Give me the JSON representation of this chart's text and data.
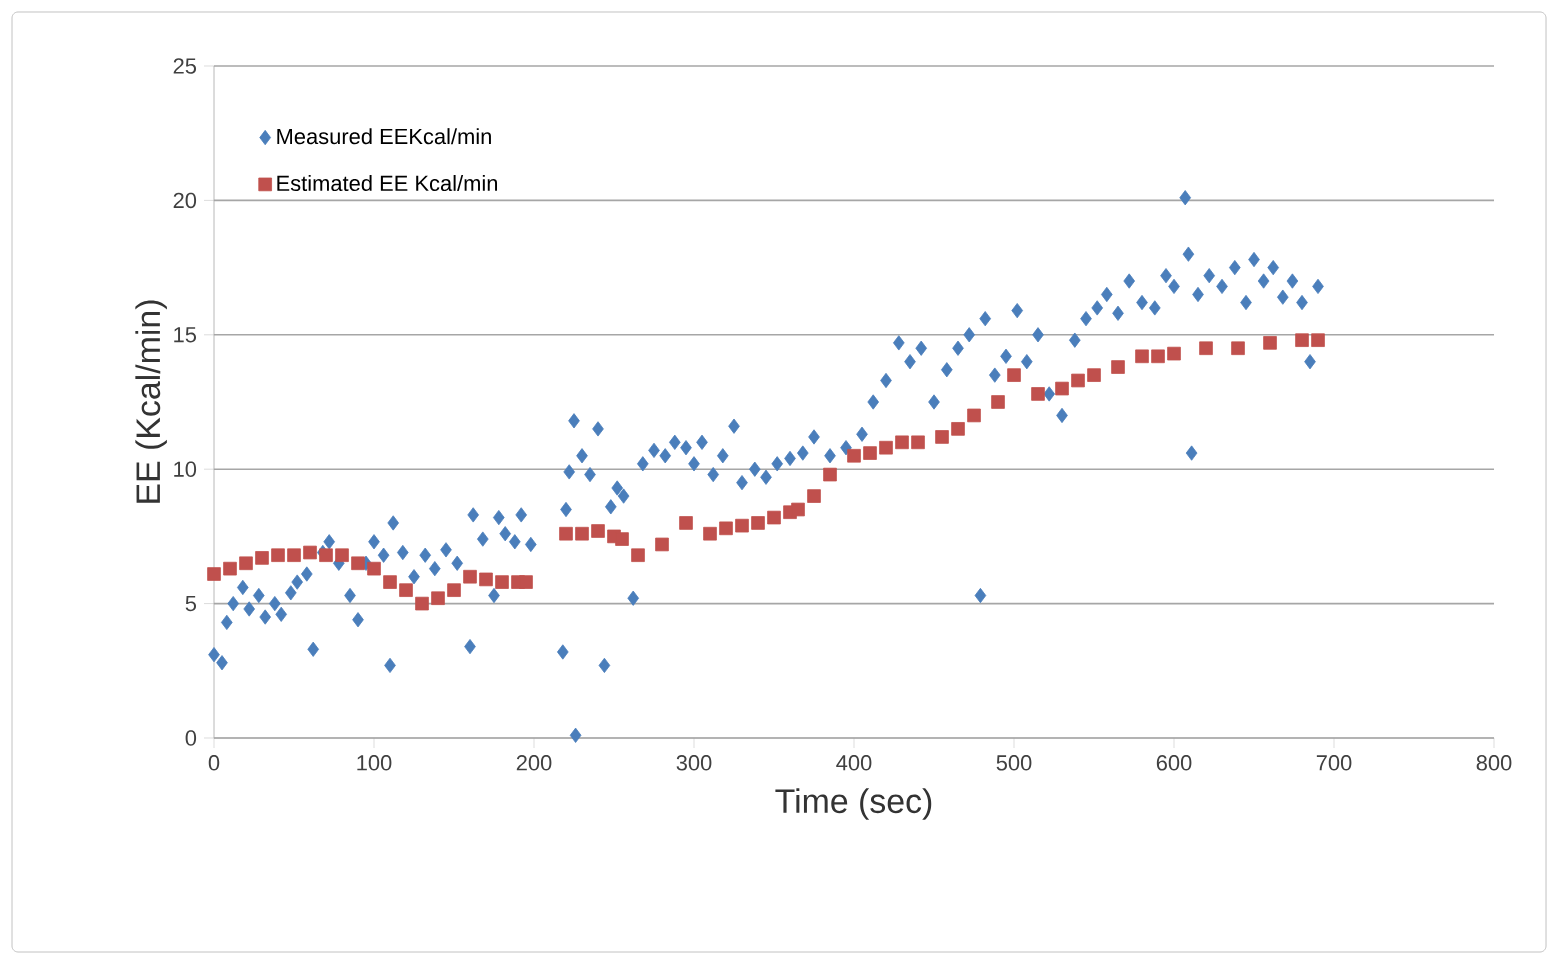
{
  "chart_data": {
    "type": "scatter",
    "xlabel": "Time (sec)",
    "ylabel": "EE (Kcal/min)",
    "xlim": [
      0,
      800
    ],
    "ylim": [
      0,
      25
    ],
    "xticks": [
      0,
      100,
      200,
      300,
      400,
      500,
      600,
      700,
      800
    ],
    "yticks": [
      0,
      5,
      10,
      15,
      20,
      25
    ],
    "grid": "y",
    "legend": "top left",
    "series": [
      {
        "name": "Measured EEKcal/min",
        "color": "#4a7ebb",
        "marker": "diamond",
        "x": [
          0,
          5,
          8,
          12,
          18,
          22,
          28,
          32,
          38,
          42,
          48,
          52,
          58,
          62,
          68,
          72,
          78,
          85,
          90,
          95,
          100,
          106,
          110,
          112,
          118,
          125,
          132,
          138,
          145,
          152,
          160,
          162,
          168,
          175,
          178,
          182,
          188,
          192,
          198,
          218,
          220,
          222,
          225,
          226,
          230,
          235,
          240,
          244,
          248,
          252,
          256,
          262,
          268,
          275,
          282,
          288,
          295,
          300,
          305,
          312,
          318,
          325,
          330,
          338,
          345,
          352,
          360,
          368,
          375,
          385,
          395,
          405,
          412,
          420,
          428,
          435,
          442,
          450,
          458,
          465,
          472,
          479,
          482,
          488,
          495,
          502,
          508,
          515,
          522,
          530,
          538,
          545,
          552,
          558,
          565,
          572,
          580,
          588,
          595,
          600,
          607,
          609,
          611,
          615,
          622,
          630,
          638,
          645,
          650,
          656,
          662,
          668,
          674,
          680,
          685,
          690
        ],
        "values": [
          3.1,
          2.8,
          4.3,
          5.0,
          5.6,
          4.8,
          5.3,
          4.5,
          5.0,
          4.6,
          5.4,
          5.8,
          6.1,
          3.3,
          6.9,
          7.3,
          6.5,
          5.3,
          4.4,
          6.5,
          7.3,
          6.8,
          2.7,
          8.0,
          6.9,
          6.0,
          6.8,
          6.3,
          7.0,
          6.5,
          3.4,
          8.3,
          7.4,
          5.3,
          8.2,
          7.6,
          7.3,
          8.3,
          7.2,
          3.2,
          8.5,
          9.9,
          11.8,
          0.1,
          10.5,
          9.8,
          11.5,
          2.7,
          8.6,
          9.3,
          9.0,
          5.2,
          10.2,
          10.7,
          10.5,
          11.0,
          10.8,
          10.2,
          11.0,
          9.8,
          10.5,
          11.6,
          9.5,
          10.0,
          9.7,
          10.2,
          10.4,
          10.6,
          11.2,
          10.5,
          10.8,
          11.3,
          12.5,
          13.3,
          14.7,
          14.0,
          14.5,
          12.5,
          13.7,
          14.5,
          15.0,
          5.3,
          15.6,
          13.5,
          14.2,
          15.9,
          14.0,
          15.0,
          12.8,
          12.0,
          14.8,
          15.6,
          16.0,
          16.5,
          15.8,
          17.0,
          16.2,
          16.0,
          17.2,
          16.8,
          20.1,
          18.0,
          10.6,
          16.5,
          17.2,
          16.8,
          17.5,
          16.2,
          17.8,
          17.0,
          17.5,
          16.4,
          17.0,
          16.2,
          14.0,
          16.8
        ]
      },
      {
        "name": "Estimated EE Kcal/min",
        "color": "#c0504d",
        "marker": "square",
        "x": [
          0,
          10,
          20,
          30,
          40,
          50,
          60,
          70,
          80,
          90,
          100,
          110,
          120,
          130,
          140,
          150,
          160,
          170,
          180,
          190,
          195,
          220,
          230,
          240,
          250,
          255,
          265,
          280,
          295,
          310,
          320,
          330,
          340,
          350,
          360,
          365,
          375,
          385,
          400,
          410,
          420,
          430,
          440,
          455,
          465,
          475,
          490,
          500,
          515,
          530,
          540,
          550,
          565,
          580,
          590,
          600,
          620,
          640,
          660,
          680,
          690
        ],
        "values": [
          6.1,
          6.3,
          6.5,
          6.7,
          6.8,
          6.8,
          6.9,
          6.8,
          6.8,
          6.5,
          6.3,
          5.8,
          5.5,
          5.0,
          5.2,
          5.5,
          6.0,
          5.9,
          5.8,
          5.8,
          5.8,
          7.6,
          7.6,
          7.7,
          7.5,
          7.4,
          6.8,
          7.2,
          8.0,
          7.6,
          7.8,
          7.9,
          8.0,
          8.2,
          8.4,
          8.5,
          9.0,
          9.8,
          10.5,
          10.6,
          10.8,
          11.0,
          11.0,
          11.2,
          11.5,
          12.0,
          12.5,
          13.5,
          12.8,
          13.0,
          13.3,
          13.5,
          13.8,
          14.2,
          14.2,
          14.3,
          14.5,
          14.5,
          14.7,
          14.8,
          14.8
        ]
      }
    ]
  }
}
